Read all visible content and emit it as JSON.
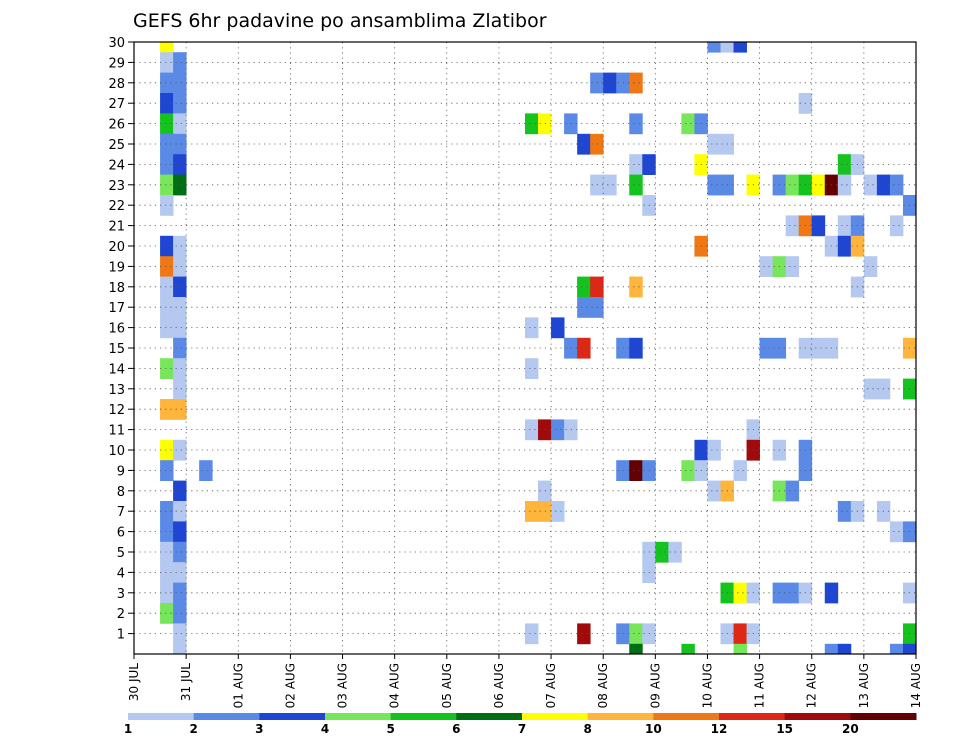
{
  "chart_data": {
    "type": "heatmap",
    "title": "GEFS 6hr padavine po ansamblima Zlatibor",
    "y_ticks": [
      "1",
      "2",
      "3",
      "4",
      "5",
      "6",
      "7",
      "8",
      "9",
      "10",
      "11",
      "12",
      "13",
      "14",
      "15",
      "16",
      "17",
      "18",
      "19",
      "20",
      "21",
      "22",
      "23",
      "24",
      "25",
      "26",
      "27",
      "28",
      "29",
      "30"
    ],
    "x_ticks": [
      "30 JUL",
      "31 JUL",
      "01 AUG",
      "02 AUG",
      "03 AUG",
      "04 AUG",
      "05 AUG",
      "06 AUG",
      "07 AUG",
      "08 AUG",
      "09 AUG",
      "10 AUG",
      "11 AUG",
      "12 AUG",
      "13 AUG",
      "14 AUG"
    ],
    "x_range_days": [
      0,
      15
    ],
    "y_range": [
      0,
      30
    ],
    "time_step_days": 0.25,
    "grid": true,
    "colorbar": {
      "labels": [
        "1",
        "2",
        "3",
        "4",
        "5",
        "6",
        "7",
        "8",
        "10",
        "12",
        "15",
        "20"
      ],
      "colors": [
        "#b4c8f0",
        "#5a8ae6",
        "#1e46d2",
        "#78e65a",
        "#14c31e",
        "#006e14",
        "#ffff00",
        "#ffb43c",
        "#f07814",
        "#dc2814",
        "#a00a0a",
        "#640000"
      ]
    },
    "cells": [
      {
        "m": 30,
        "d": 0.5,
        "c": 6
      },
      {
        "m": 30,
        "d": 11.0,
        "c": 1
      },
      {
        "m": 30,
        "d": 11.25,
        "c": 0
      },
      {
        "m": 30,
        "d": 11.5,
        "c": 2
      },
      {
        "m": 29,
        "d": 0.5,
        "c": 0
      },
      {
        "m": 29,
        "d": 0.75,
        "c": 1
      },
      {
        "m": 28,
        "d": 0.5,
        "c": 1
      },
      {
        "m": 28,
        "d": 0.75,
        "c": 1
      },
      {
        "m": 28,
        "d": 8.75,
        "c": 1
      },
      {
        "m": 28,
        "d": 9.0,
        "c": 2
      },
      {
        "m": 28,
        "d": 9.25,
        "c": 1
      },
      {
        "m": 28,
        "d": 9.5,
        "c": 8
      },
      {
        "m": 27,
        "d": 0.5,
        "c": 2
      },
      {
        "m": 27,
        "d": 0.75,
        "c": 1
      },
      {
        "m": 27,
        "d": 12.75,
        "c": 0
      },
      {
        "m": 26,
        "d": 0.5,
        "c": 4
      },
      {
        "m": 26,
        "d": 0.75,
        "c": 0
      },
      {
        "m": 26,
        "d": 7.5,
        "c": 4
      },
      {
        "m": 26,
        "d": 7.75,
        "c": 6
      },
      {
        "m": 26,
        "d": 8.25,
        "c": 1
      },
      {
        "m": 26,
        "d": 9.5,
        "c": 1
      },
      {
        "m": 26,
        "d": 10.5,
        "c": 3
      },
      {
        "m": 26,
        "d": 10.75,
        "c": 1
      },
      {
        "m": 25,
        "d": 0.5,
        "c": 1
      },
      {
        "m": 25,
        "d": 0.75,
        "c": 1
      },
      {
        "m": 25,
        "d": 8.5,
        "c": 2
      },
      {
        "m": 25,
        "d": 8.75,
        "c": 8
      },
      {
        "m": 25,
        "d": 11.0,
        "c": 0
      },
      {
        "m": 25,
        "d": 11.25,
        "c": 0
      },
      {
        "m": 24,
        "d": 0.5,
        "c": 1
      },
      {
        "m": 24,
        "d": 0.75,
        "c": 2
      },
      {
        "m": 24,
        "d": 9.5,
        "c": 0
      },
      {
        "m": 24,
        "d": 9.75,
        "c": 2
      },
      {
        "m": 24,
        "d": 10.75,
        "c": 6
      },
      {
        "m": 24,
        "d": 13.5,
        "c": 4
      },
      {
        "m": 24,
        "d": 13.75,
        "c": 0
      },
      {
        "m": 23,
        "d": 0.5,
        "c": 3
      },
      {
        "m": 23,
        "d": 0.75,
        "c": 5
      },
      {
        "m": 23,
        "d": 8.75,
        "c": 0
      },
      {
        "m": 23,
        "d": 9.0,
        "c": 0
      },
      {
        "m": 23,
        "d": 9.5,
        "c": 4
      },
      {
        "m": 23,
        "d": 11.0,
        "c": 1
      },
      {
        "m": 23,
        "d": 11.25,
        "c": 1
      },
      {
        "m": 23,
        "d": 11.75,
        "c": 6
      },
      {
        "m": 23,
        "d": 12.25,
        "c": 1
      },
      {
        "m": 23,
        "d": 12.5,
        "c": 3
      },
      {
        "m": 23,
        "d": 12.75,
        "c": 4
      },
      {
        "m": 23,
        "d": 13.0,
        "c": 6
      },
      {
        "m": 23,
        "d": 13.25,
        "c": 11
      },
      {
        "m": 23,
        "d": 13.5,
        "c": 0
      },
      {
        "m": 23,
        "d": 14.0,
        "c": 0
      },
      {
        "m": 23,
        "d": 14.25,
        "c": 2
      },
      {
        "m": 23,
        "d": 14.5,
        "c": 1
      },
      {
        "m": 22,
        "d": 0.5,
        "c": 0
      },
      {
        "m": 22,
        "d": 9.75,
        "c": 0
      },
      {
        "m": 22,
        "d": 14.75,
        "c": 1
      },
      {
        "m": 21,
        "d": 12.5,
        "c": 0
      },
      {
        "m": 21,
        "d": 12.75,
        "c": 8
      },
      {
        "m": 21,
        "d": 13.0,
        "c": 2
      },
      {
        "m": 21,
        "d": 13.5,
        "c": 0
      },
      {
        "m": 21,
        "d": 13.75,
        "c": 1
      },
      {
        "m": 21,
        "d": 14.5,
        "c": 0
      },
      {
        "m": 20,
        "d": 0.5,
        "c": 2
      },
      {
        "m": 20,
        "d": 0.75,
        "c": 0
      },
      {
        "m": 20,
        "d": 10.75,
        "c": 8
      },
      {
        "m": 20,
        "d": 13.25,
        "c": 0
      },
      {
        "m": 20,
        "d": 13.5,
        "c": 2
      },
      {
        "m": 20,
        "d": 13.75,
        "c": 7
      },
      {
        "m": 19,
        "d": 0.5,
        "c": 8
      },
      {
        "m": 19,
        "d": 0.75,
        "c": 0
      },
      {
        "m": 19,
        "d": 12.0,
        "c": 0
      },
      {
        "m": 19,
        "d": 12.25,
        "c": 3
      },
      {
        "m": 19,
        "d": 12.5,
        "c": 0
      },
      {
        "m": 19,
        "d": 14.0,
        "c": 0
      },
      {
        "m": 18,
        "d": 0.5,
        "c": 0
      },
      {
        "m": 18,
        "d": 0.75,
        "c": 2
      },
      {
        "m": 18,
        "d": 8.5,
        "c": 4
      },
      {
        "m": 18,
        "d": 8.75,
        "c": 9
      },
      {
        "m": 18,
        "d": 9.5,
        "c": 7
      },
      {
        "m": 18,
        "d": 13.75,
        "c": 0
      },
      {
        "m": 17,
        "d": 0.5,
        "c": 0
      },
      {
        "m": 17,
        "d": 0.75,
        "c": 0
      },
      {
        "m": 17,
        "d": 8.5,
        "c": 1
      },
      {
        "m": 17,
        "d": 8.75,
        "c": 1
      },
      {
        "m": 16,
        "d": 0.5,
        "c": 0
      },
      {
        "m": 16,
        "d": 0.75,
        "c": 0
      },
      {
        "m": 16,
        "d": 7.5,
        "c": 0
      },
      {
        "m": 16,
        "d": 8.0,
        "c": 2
      },
      {
        "m": 15,
        "d": 0.75,
        "c": 1
      },
      {
        "m": 15,
        "d": 8.25,
        "c": 1
      },
      {
        "m": 15,
        "d": 8.5,
        "c": 9
      },
      {
        "m": 15,
        "d": 9.25,
        "c": 1
      },
      {
        "m": 15,
        "d": 9.5,
        "c": 2
      },
      {
        "m": 15,
        "d": 12.0,
        "c": 1
      },
      {
        "m": 15,
        "d": 12.25,
        "c": 1
      },
      {
        "m": 15,
        "d": 12.75,
        "c": 0
      },
      {
        "m": 15,
        "d": 13.0,
        "c": 0
      },
      {
        "m": 15,
        "d": 13.25,
        "c": 0
      },
      {
        "m": 15,
        "d": 14.75,
        "c": 7
      },
      {
        "m": 14,
        "d": 0.5,
        "c": 3
      },
      {
        "m": 14,
        "d": 0.75,
        "c": 0
      },
      {
        "m": 14,
        "d": 7.5,
        "c": 0
      },
      {
        "m": 13,
        "d": 0.75,
        "c": 0
      },
      {
        "m": 13,
        "d": 14.0,
        "c": 0
      },
      {
        "m": 13,
        "d": 14.25,
        "c": 0
      },
      {
        "m": 13,
        "d": 14.75,
        "c": 4
      },
      {
        "m": 12,
        "d": 0.5,
        "c": 7
      },
      {
        "m": 12,
        "d": 0.75,
        "c": 7
      },
      {
        "m": 11,
        "d": 7.5,
        "c": 0
      },
      {
        "m": 11,
        "d": 7.75,
        "c": 10
      },
      {
        "m": 11,
        "d": 8.0,
        "c": 1
      },
      {
        "m": 11,
        "d": 8.25,
        "c": 0
      },
      {
        "m": 11,
        "d": 11.75,
        "c": 0
      },
      {
        "m": 10,
        "d": 0.5,
        "c": 6
      },
      {
        "m": 10,
        "d": 0.75,
        "c": 0
      },
      {
        "m": 10,
        "d": 10.75,
        "c": 2
      },
      {
        "m": 10,
        "d": 11.0,
        "c": 0
      },
      {
        "m": 10,
        "d": 11.75,
        "c": 10
      },
      {
        "m": 10,
        "d": 12.25,
        "c": 0
      },
      {
        "m": 10,
        "d": 12.75,
        "c": 1
      },
      {
        "m": 9,
        "d": 0.5,
        "c": 1
      },
      {
        "m": 9,
        "d": 1.25,
        "c": 1
      },
      {
        "m": 9,
        "d": 9.25,
        "c": 1
      },
      {
        "m": 9,
        "d": 9.5,
        "c": 11
      },
      {
        "m": 9,
        "d": 9.75,
        "c": 1
      },
      {
        "m": 9,
        "d": 10.5,
        "c": 3
      },
      {
        "m": 9,
        "d": 10.75,
        "c": 0
      },
      {
        "m": 9,
        "d": 11.5,
        "c": 0
      },
      {
        "m": 9,
        "d": 12.75,
        "c": 1
      },
      {
        "m": 8,
        "d": 0.75,
        "c": 2
      },
      {
        "m": 8,
        "d": 7.75,
        "c": 0
      },
      {
        "m": 8,
        "d": 11.0,
        "c": 0
      },
      {
        "m": 8,
        "d": 11.25,
        "c": 7
      },
      {
        "m": 8,
        "d": 12.25,
        "c": 3
      },
      {
        "m": 8,
        "d": 12.5,
        "c": 1
      },
      {
        "m": 7,
        "d": 0.5,
        "c": 1
      },
      {
        "m": 7,
        "d": 0.75,
        "c": 0
      },
      {
        "m": 7,
        "d": 7.5,
        "c": 7
      },
      {
        "m": 7,
        "d": 7.75,
        "c": 7
      },
      {
        "m": 7,
        "d": 8.0,
        "c": 0
      },
      {
        "m": 7,
        "d": 13.5,
        "c": 1
      },
      {
        "m": 7,
        "d": 13.75,
        "c": 0
      },
      {
        "m": 7,
        "d": 14.25,
        "c": 0
      },
      {
        "m": 6,
        "d": 0.5,
        "c": 1
      },
      {
        "m": 6,
        "d": 0.75,
        "c": 2
      },
      {
        "m": 6,
        "d": 14.5,
        "c": 0
      },
      {
        "m": 6,
        "d": 14.75,
        "c": 1
      },
      {
        "m": 5,
        "d": 0.5,
        "c": 0
      },
      {
        "m": 5,
        "d": 0.75,
        "c": 1
      },
      {
        "m": 5,
        "d": 9.75,
        "c": 0
      },
      {
        "m": 5,
        "d": 10.0,
        "c": 4
      },
      {
        "m": 5,
        "d": 10.25,
        "c": 0
      },
      {
        "m": 4,
        "d": 0.5,
        "c": 0
      },
      {
        "m": 4,
        "d": 0.75,
        "c": 0
      },
      {
        "m": 4,
        "d": 9.75,
        "c": 0
      },
      {
        "m": 3,
        "d": 0.5,
        "c": 0
      },
      {
        "m": 3,
        "d": 0.75,
        "c": 1
      },
      {
        "m": 3,
        "d": 11.25,
        "c": 4
      },
      {
        "m": 3,
        "d": 11.5,
        "c": 6
      },
      {
        "m": 3,
        "d": 11.75,
        "c": 0
      },
      {
        "m": 3,
        "d": 12.25,
        "c": 1
      },
      {
        "m": 3,
        "d": 12.5,
        "c": 1
      },
      {
        "m": 3,
        "d": 12.75,
        "c": 0
      },
      {
        "m": 3,
        "d": 13.25,
        "c": 2
      },
      {
        "m": 3,
        "d": 14.75,
        "c": 0
      },
      {
        "m": 2,
        "d": 0.5,
        "c": 3
      },
      {
        "m": 2,
        "d": 0.75,
        "c": 1
      },
      {
        "m": 1,
        "d": 0.75,
        "c": 0
      },
      {
        "m": 1,
        "d": 7.5,
        "c": 0
      },
      {
        "m": 1,
        "d": 8.5,
        "c": 10
      },
      {
        "m": 1,
        "d": 9.25,
        "c": 1
      },
      {
        "m": 1,
        "d": 9.5,
        "c": 3
      },
      {
        "m": 1,
        "d": 9.75,
        "c": 0
      },
      {
        "m": 1,
        "d": 11.25,
        "c": 0
      },
      {
        "m": 1,
        "d": 11.5,
        "c": 9
      },
      {
        "m": 1,
        "d": 11.75,
        "c": 0
      },
      {
        "m": 1,
        "d": 14.75,
        "c": 4
      },
      {
        "m": 0,
        "d": 0.75,
        "c": 0
      },
      {
        "m": 0,
        "d": 9.5,
        "c": 5
      },
      {
        "m": 0,
        "d": 10.5,
        "c": 4
      },
      {
        "m": 0,
        "d": 11.5,
        "c": 3
      },
      {
        "m": 0,
        "d": 13.25,
        "c": 1
      },
      {
        "m": 0,
        "d": 13.5,
        "c": 2
      },
      {
        "m": 0,
        "d": 14.5,
        "c": 1
      },
      {
        "m": 0,
        "d": 14.75,
        "c": 2
      }
    ]
  }
}
